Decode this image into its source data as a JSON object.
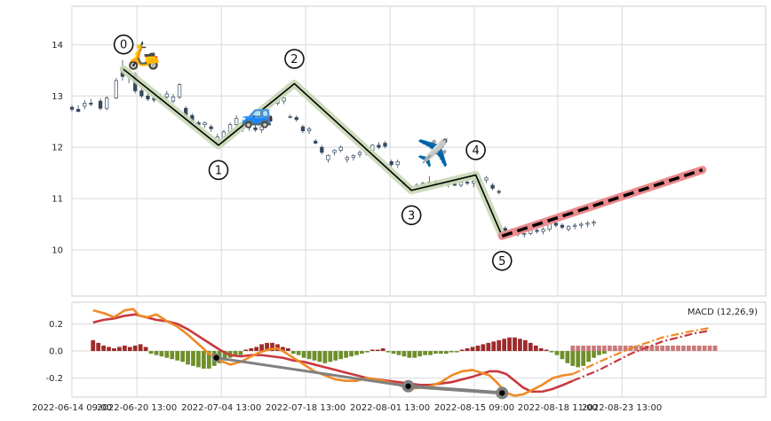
{
  "chart_data": [
    {
      "type": "candlestick",
      "panel": "price",
      "ylim": [
        9.1,
        14.75
      ],
      "yticks": [
        10,
        11,
        12,
        13,
        14
      ],
      "grid": true,
      "candles_day": [
        [
          0,
          12.78,
          12.82,
          12.7,
          12.74
        ],
        [
          0.6,
          12.74,
          12.82,
          12.68,
          12.7
        ],
        [
          1.2,
          12.8,
          12.92,
          12.74,
          12.86
        ],
        [
          1.8,
          12.86,
          12.94,
          12.8,
          12.84
        ],
        [
          2.7,
          12.9,
          12.95,
          12.72,
          12.76
        ],
        [
          3.3,
          12.76,
          13.0,
          12.72,
          12.96
        ],
        [
          4.2,
          12.96,
          13.35,
          12.94,
          13.3
        ],
        [
          4.8,
          13.55,
          13.7,
          13.3,
          13.38
        ],
        [
          5.4,
          13.38,
          13.5,
          13.25,
          13.42
        ],
        [
          6.0,
          13.42,
          13.46,
          13.05,
          13.1
        ],
        [
          6.6,
          13.1,
          13.22,
          12.96,
          13.0
        ],
        [
          7.2,
          13.0,
          13.08,
          12.9,
          12.94
        ],
        [
          7.8,
          12.96,
          13.04,
          12.88,
          12.92
        ],
        [
          8.4,
          12.92,
          13.05,
          12.86,
          12.98
        ],
        [
          9.0,
          12.98,
          13.1,
          12.94,
          13.04
        ],
        [
          9.6,
          12.9,
          13.04,
          12.86,
          12.98
        ],
        [
          10.2,
          12.98,
          13.25,
          12.94,
          13.22
        ],
        [
          10.8,
          12.76,
          12.8,
          12.56,
          12.62
        ],
        [
          11.4,
          12.62,
          12.66,
          12.44,
          12.48
        ],
        [
          12.0,
          12.48,
          12.52,
          12.4,
          12.44
        ],
        [
          12.6,
          12.44,
          12.5,
          12.38,
          12.48
        ],
        [
          13.2,
          12.4,
          12.44,
          12.3,
          12.36
        ],
        [
          13.8,
          12.1,
          12.26,
          12.04,
          12.2
        ],
        [
          14.4,
          12.1,
          12.34,
          12.04,
          12.3
        ],
        [
          15.0,
          12.3,
          12.48,
          12.24,
          12.44
        ],
        [
          15.6,
          12.44,
          12.62,
          12.38,
          12.56
        ],
        [
          16.2,
          12.36,
          12.42,
          12.3,
          12.4
        ],
        [
          16.8,
          12.4,
          12.44,
          12.32,
          12.38
        ],
        [
          17.4,
          12.38,
          12.46,
          12.3,
          12.34
        ],
        [
          18.0,
          12.34,
          12.42,
          12.28,
          12.4
        ],
        [
          18.9,
          12.82,
          12.92,
          12.8,
          12.9
        ],
        [
          19.5,
          12.86,
          12.96,
          12.82,
          12.94
        ],
        [
          20.1,
          12.9,
          13.0,
          12.84,
          12.96
        ],
        [
          20.7,
          12.6,
          12.64,
          12.56,
          12.6
        ],
        [
          21.3,
          12.58,
          12.62,
          12.5,
          12.54
        ],
        [
          21.9,
          12.4,
          12.44,
          12.28,
          12.32
        ],
        [
          22.5,
          12.32,
          12.4,
          12.26,
          12.36
        ],
        [
          23.1,
          12.12,
          12.16,
          12.06,
          12.08
        ],
        [
          23.7,
          12.0,
          12.04,
          11.86,
          11.9
        ],
        [
          24.3,
          11.76,
          11.86,
          11.7,
          11.84
        ],
        [
          24.9,
          11.9,
          11.96,
          11.84,
          11.94
        ],
        [
          25.5,
          11.94,
          12.04,
          11.9,
          12.0
        ],
        [
          26.1,
          11.76,
          11.84,
          11.7,
          11.8
        ],
        [
          26.7,
          11.8,
          11.86,
          11.74,
          11.84
        ],
        [
          27.3,
          11.86,
          11.94,
          11.8,
          11.9
        ],
        [
          27.9,
          11.9,
          11.98,
          11.84,
          11.94
        ],
        [
          28.5,
          11.94,
          12.06,
          11.9,
          12.04
        ],
        [
          29.1,
          12.04,
          12.1,
          11.96,
          12.0
        ],
        [
          29.7,
          12.08,
          12.12,
          11.98,
          12.02
        ],
        [
          30.3,
          11.72,
          11.76,
          11.62,
          11.66
        ],
        [
          30.9,
          11.66,
          11.76,
          11.6,
          11.72
        ],
        [
          31.5,
          11.32,
          11.36,
          11.22,
          11.26
        ],
        [
          32.1,
          11.22,
          11.28,
          11.16,
          11.24
        ],
        [
          32.7,
          11.24,
          11.3,
          11.18,
          11.26
        ],
        [
          33.3,
          11.26,
          11.32,
          11.22,
          11.3
        ],
        [
          33.9,
          11.3,
          11.44,
          11.26,
          11.32
        ],
        [
          34.5,
          11.32,
          11.36,
          11.26,
          11.3
        ],
        [
          35.1,
          11.3,
          11.34,
          11.24,
          11.28
        ],
        [
          35.7,
          11.28,
          11.34,
          11.22,
          11.3
        ],
        [
          36.3,
          11.3,
          11.34,
          11.24,
          11.26
        ],
        [
          36.9,
          11.26,
          11.34,
          11.22,
          11.32
        ],
        [
          37.5,
          11.32,
          11.38,
          11.26,
          11.3
        ],
        [
          38.1,
          11.3,
          11.36,
          11.22,
          11.34
        ],
        [
          38.7,
          11.34,
          11.4,
          11.28,
          11.36
        ],
        [
          39.3,
          11.36,
          11.44,
          11.3,
          11.4
        ],
        [
          39.9,
          11.26,
          11.3,
          11.16,
          11.2
        ],
        [
          40.5,
          11.14,
          11.18,
          11.08,
          11.12
        ],
        [
          41.1,
          10.42,
          10.46,
          10.3,
          10.34
        ],
        [
          41.7,
          10.34,
          10.42,
          10.28,
          10.38
        ],
        [
          42.3,
          10.32,
          10.38,
          10.26,
          10.3
        ],
        [
          42.9,
          10.3,
          10.36,
          10.24,
          10.32
        ],
        [
          43.5,
          10.32,
          10.4,
          10.28,
          10.38
        ],
        [
          44.1,
          10.38,
          10.42,
          10.32,
          10.36
        ],
        [
          44.7,
          10.36,
          10.44,
          10.3,
          10.4
        ],
        [
          45.3,
          10.4,
          10.56,
          10.36,
          10.52
        ],
        [
          45.9,
          10.52,
          10.58,
          10.44,
          10.48
        ],
        [
          46.5,
          10.48,
          10.52,
          10.4,
          10.44
        ],
        [
          47.1,
          10.4,
          10.48,
          10.36,
          10.46
        ],
        [
          47.7,
          10.46,
          10.52,
          10.4,
          10.48
        ],
        [
          48.3,
          10.48,
          10.54,
          10.42,
          10.5
        ],
        [
          48.9,
          10.5,
          10.56,
          10.44,
          10.52
        ],
        [
          49.5,
          10.52,
          10.58,
          10.46,
          10.54
        ]
      ],
      "zigzag_points_day": [
        [
          4.9,
          13.52,
          "0"
        ],
        [
          13.9,
          12.04,
          "1"
        ],
        [
          21.1,
          13.24,
          "2"
        ],
        [
          32.2,
          11.16,
          "3"
        ],
        [
          38.3,
          11.46,
          "4"
        ],
        [
          40.8,
          10.27,
          "5"
        ]
      ],
      "forecast_day": [
        [
          40.8,
          10.27
        ],
        [
          59.8,
          11.56
        ]
      ],
      "emoji_annotations": [
        {
          "day": 6.8,
          "price": 13.62,
          "icon": "🛵"
        },
        {
          "day": 17.6,
          "price": 12.48,
          "icon": "🚙"
        },
        {
          "day": 34.3,
          "price": 11.72,
          "icon": "✈️"
        }
      ]
    },
    {
      "type": "macd",
      "panel": "indicator",
      "legend_label": "MACD (12,26,9)",
      "legend_position": "top-right",
      "ylim": [
        -0.34,
        0.36
      ],
      "yticks": [
        -0.2,
        0.0,
        0.2
      ],
      "grid": true,
      "macd_line": [
        [
          2.0,
          0.3
        ],
        [
          3.0,
          0.28
        ],
        [
          4.0,
          0.25
        ],
        [
          5.0,
          0.3
        ],
        [
          5.8,
          0.31
        ],
        [
          6.4,
          0.26
        ],
        [
          7.2,
          0.25
        ],
        [
          8.0,
          0.27
        ],
        [
          9.0,
          0.22
        ],
        [
          10.0,
          0.18
        ],
        [
          11.0,
          0.12
        ],
        [
          12.0,
          0.05
        ],
        [
          13.0,
          -0.02
        ],
        [
          14.0,
          -0.07
        ],
        [
          15.0,
          -0.1
        ],
        [
          16.0,
          -0.08
        ],
        [
          17.0,
          -0.04
        ],
        [
          17.8,
          -0.01
        ],
        [
          18.6,
          0.01
        ],
        [
          19.4,
          0.02
        ],
        [
          20.0,
          0.0
        ],
        [
          21.0,
          -0.05
        ],
        [
          22.0,
          -0.1
        ],
        [
          23.0,
          -0.15
        ],
        [
          24.0,
          -0.18
        ],
        [
          25.0,
          -0.21
        ],
        [
          26.0,
          -0.22
        ],
        [
          27.0,
          -0.22
        ],
        [
          28.0,
          -0.2
        ],
        [
          29.0,
          -0.21
        ],
        [
          30.0,
          -0.23
        ],
        [
          31.0,
          -0.25
        ],
        [
          32.0,
          -0.28
        ],
        [
          33.0,
          -0.27
        ],
        [
          34.0,
          -0.26
        ],
        [
          35.0,
          -0.23
        ],
        [
          36.0,
          -0.18
        ],
        [
          37.0,
          -0.15
        ],
        [
          38.0,
          -0.14
        ],
        [
          38.8,
          -0.16
        ],
        [
          39.6,
          -0.18
        ],
        [
          40.4,
          -0.24
        ],
        [
          41.2,
          -0.31
        ],
        [
          42.0,
          -0.33
        ],
        [
          42.8,
          -0.32
        ],
        [
          43.6,
          -0.29
        ],
        [
          44.6,
          -0.25
        ],
        [
          45.6,
          -0.2
        ],
        [
          46.6,
          -0.18
        ],
        [
          47.5,
          -0.17
        ]
      ],
      "signal_line": [
        [
          2.0,
          0.21
        ],
        [
          3.0,
          0.23
        ],
        [
          4.0,
          0.24
        ],
        [
          5.0,
          0.26
        ],
        [
          6.0,
          0.27
        ],
        [
          7.0,
          0.25
        ],
        [
          8.0,
          0.23
        ],
        [
          9.0,
          0.22
        ],
        [
          10.0,
          0.2
        ],
        [
          11.0,
          0.16
        ],
        [
          12.0,
          0.11
        ],
        [
          13.0,
          0.06
        ],
        [
          14.0,
          0.01
        ],
        [
          15.0,
          -0.03
        ],
        [
          16.0,
          -0.04
        ],
        [
          17.0,
          -0.03
        ],
        [
          18.0,
          -0.03
        ],
        [
          19.0,
          -0.04
        ],
        [
          20.0,
          -0.05
        ],
        [
          21.0,
          -0.07
        ],
        [
          22.0,
          -0.08
        ],
        [
          23.0,
          -0.1
        ],
        [
          24.0,
          -0.12
        ],
        [
          25.0,
          -0.14
        ],
        [
          26.0,
          -0.16
        ],
        [
          27.0,
          -0.18
        ],
        [
          28.0,
          -0.2
        ],
        [
          29.0,
          -0.21
        ],
        [
          30.0,
          -0.22
        ],
        [
          31.0,
          -0.23
        ],
        [
          32.0,
          -0.24
        ],
        [
          33.0,
          -0.25
        ],
        [
          34.0,
          -0.25
        ],
        [
          35.0,
          -0.24
        ],
        [
          36.0,
          -0.23
        ],
        [
          37.0,
          -0.21
        ],
        [
          38.0,
          -0.19
        ],
        [
          38.8,
          -0.17
        ],
        [
          39.6,
          -0.15
        ],
        [
          40.4,
          -0.15
        ],
        [
          41.2,
          -0.17
        ],
        [
          42.0,
          -0.22
        ],
        [
          42.8,
          -0.27
        ],
        [
          43.6,
          -0.3
        ],
        [
          44.6,
          -0.3
        ],
        [
          45.6,
          -0.28
        ],
        [
          46.6,
          -0.25
        ],
        [
          47.5,
          -0.22
        ]
      ],
      "macd_forecast": [
        [
          47.5,
          -0.17
        ],
        [
          50,
          -0.08
        ],
        [
          53,
          0.02
        ],
        [
          56,
          0.1
        ],
        [
          59,
          0.15
        ],
        [
          60.5,
          0.17
        ]
      ],
      "signal_forecast": [
        [
          47.5,
          -0.22
        ],
        [
          50,
          -0.14
        ],
        [
          53,
          -0.02
        ],
        [
          56,
          0.07
        ],
        [
          59,
          0.13
        ],
        [
          60.5,
          0.15
        ]
      ],
      "histogram_start_day": 2.0,
      "histogram_step_day": 0.5,
      "histogram": [
        0.08,
        0.06,
        0.04,
        0.03,
        0.02,
        0.03,
        0.04,
        0.03,
        0.04,
        0.05,
        0.03,
        -0.02,
        -0.03,
        -0.04,
        -0.05,
        -0.06,
        -0.07,
        -0.08,
        -0.1,
        -0.11,
        -0.12,
        -0.13,
        -0.13,
        -0.11,
        -0.09,
        -0.07,
        -0.05,
        -0.04,
        -0.03,
        0.01,
        0.02,
        0.03,
        0.05,
        0.06,
        0.06,
        0.05,
        0.03,
        0.02,
        -0.02,
        -0.03,
        -0.05,
        -0.06,
        -0.07,
        -0.08,
        -0.09,
        -0.08,
        -0.07,
        -0.06,
        -0.05,
        -0.04,
        -0.03,
        -0.02,
        -0.01,
        0.01,
        0.01,
        0.02,
        -0.01,
        -0.02,
        -0.03,
        -0.04,
        -0.05,
        -0.05,
        -0.04,
        -0.03,
        -0.03,
        -0.02,
        -0.02,
        -0.02,
        -0.01,
        -0.01,
        0.01,
        0.02,
        0.03,
        0.04,
        0.05,
        0.06,
        0.07,
        0.08,
        0.09,
        0.1,
        0.1,
        0.09,
        0.08,
        0.06,
        0.04,
        0.02,
        0.01,
        -0.01,
        -0.03,
        -0.06,
        -0.09,
        -0.11,
        -0.12,
        -0.11,
        -0.08,
        -0.05,
        -0.03,
        -0.02,
        0.01,
        0.02,
        0.02
      ],
      "histogram_forecast_from_day": 47.5,
      "histogram_forecast_end_day": 61.0,
      "histogram_forecast_value": 0.04,
      "divergence_line": [
        [
          13.7,
          -0.05
        ],
        [
          31.9,
          -0.26
        ],
        [
          40.8,
          -0.31
        ]
      ]
    }
  ],
  "x_axis": {
    "tick_days": [
      0,
      6.167,
      14.167,
      22.167,
      30.167,
      38.167,
      46.083,
      52.167
    ],
    "tick_labels": [
      "2022-06-14 09:00",
      "2022-06-20 13:00",
      "2022-07-04 13:00",
      "2022-07-18 13:00",
      "2022-08-01 13:00",
      "2022-08-15 09:00",
      "2022-08-18 11:00",
      "2022-08-23 13:00"
    ]
  },
  "colors": {
    "up": "#ffffff",
    "down": "#34495e",
    "candle_edge": "#34495e",
    "zigzag": "#000000",
    "zigzag_glow": "#c8d7b5",
    "forecast": "#000000",
    "forecast_glow": "#ec8a8e",
    "macd": "#f08a24",
    "signal": "#c8383e",
    "hist_pos": "#9e2a2a",
    "hist_neg": "#6f8f2b",
    "hist_forecast": "#c97a7a",
    "divergence": "#808080",
    "grid": "#d9d9d9",
    "panel_bg": "#ffffff",
    "panel_edge": "#cccccc"
  }
}
